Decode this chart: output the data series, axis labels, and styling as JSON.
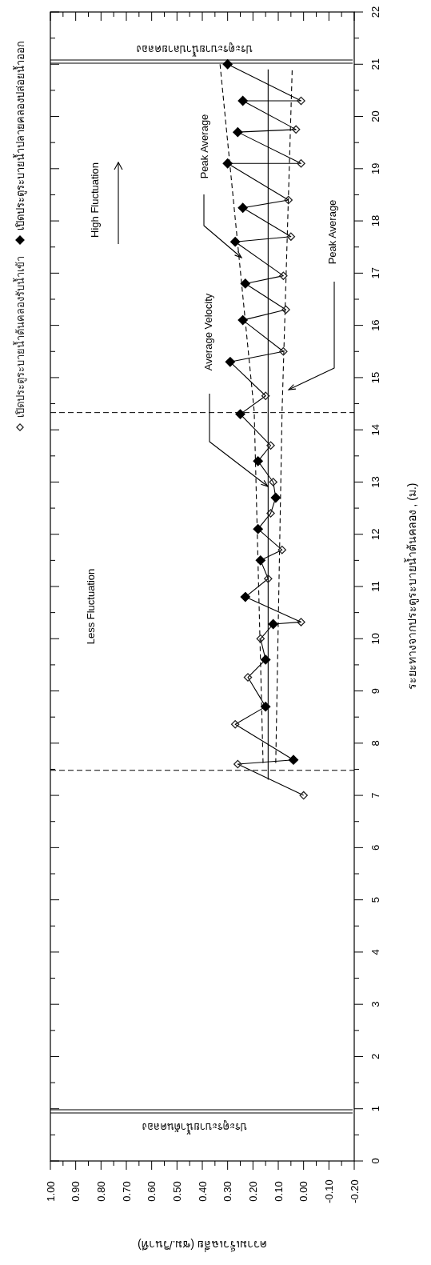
{
  "chart_data": {
    "type": "scatter",
    "ylabel": "ระยะทางจากประตูระบายน้ำต้นคลอง , (ม.)",
    "xlabel": "ความเร็วเฉลี่ย (ซม./วินาที)",
    "ylim": [
      0,
      22
    ],
    "xlim": [
      1.0,
      -0.2
    ],
    "yticks": [
      0,
      {
        "value": 0.5,
        "label": null
      },
      1,
      {
        "value": 1.5,
        "label": null
      },
      2,
      {
        "value": 2.5,
        "label": null
      },
      3,
      {
        "value": 3.5,
        "label": null
      },
      4,
      {
        "value": 4.5,
        "label": null
      },
      5,
      {
        "value": 5.5,
        "label": null
      },
      6,
      {
        "value": 6.5,
        "label": null
      },
      7,
      {
        "value": 7.5,
        "label": null
      },
      8,
      {
        "value": 8.5,
        "label": null
      },
      9,
      {
        "value": 9.5,
        "label": null
      },
      10,
      {
        "value": 10.5,
        "label": null
      },
      11,
      {
        "value": 11.5,
        "label": null
      },
      12,
      {
        "value": 12.5,
        "label": null
      },
      13,
      {
        "value": 13.5,
        "label": null
      },
      14,
      {
        "value": 14.5,
        "label": null
      },
      15,
      {
        "value": 15.5,
        "label": null
      },
      16,
      {
        "value": 16.5,
        "label": null
      },
      17,
      {
        "value": 17.5,
        "label": null
      },
      18,
      {
        "value": 18.5,
        "label": null
      },
      19,
      {
        "value": 19.5,
        "label": null
      },
      20,
      {
        "value": 20.5,
        "label": null
      },
      21,
      {
        "value": 21.5,
        "label": null
      },
      22
    ],
    "xticks": [
      {
        "value": 1.0,
        "label": "1.00"
      },
      {
        "value": 0.95,
        "label": null
      },
      {
        "value": 0.9,
        "label": "0.90"
      },
      {
        "value": 0.85,
        "label": null
      },
      {
        "value": 0.8,
        "label": "0.80"
      },
      {
        "value": 0.75,
        "label": null
      },
      {
        "value": 0.7,
        "label": "0.70"
      },
      {
        "value": 0.65,
        "label": null
      },
      {
        "value": 0.6,
        "label": "0.60"
      },
      {
        "value": 0.55,
        "label": null
      },
      {
        "value": 0.5,
        "label": "0.50"
      },
      {
        "value": 0.45,
        "label": null
      },
      {
        "value": 0.4,
        "label": "0.40"
      },
      {
        "value": 0.35,
        "label": null
      },
      {
        "value": 0.3,
        "label": "0.30"
      },
      {
        "value": 0.25,
        "label": null
      },
      {
        "value": 0.2,
        "label": "0.20"
      },
      {
        "value": 0.15,
        "label": null
      },
      {
        "value": 0.1,
        "label": "0.10"
      },
      {
        "value": 0.05,
        "label": null
      },
      {
        "value": 0,
        "label": "0.00"
      },
      {
        "value": -0.05,
        "label": null
      },
      {
        "value": -0.1,
        "label": "-0.10"
      },
      {
        "value": -0.15,
        "label": null
      },
      {
        "value": -0.2,
        "label": "-0.20"
      }
    ],
    "grid": false,
    "legend": "left",
    "series": [
      {
        "type": "line",
        "color": "#000000",
        "line_style": "solid",
        "values": [
          7.0,
          7.6,
          7.68,
          8.36,
          8.7,
          9.26,
          9.6,
          10.0,
          10.28,
          10.32,
          10.8,
          11.15,
          11.5,
          11.7,
          12.1,
          12.4,
          12.7,
          13.0,
          13.4,
          13.7,
          14.3,
          14.65,
          15.3,
          15.5,
          16.1,
          16.3,
          16.8,
          16.95,
          17.6,
          17.7,
          18.25,
          18.4,
          19.1,
          19.1,
          19.7,
          19.75,
          20.3,
          20.3,
          21.0
        ],
        "x": [
          0.0,
          0.26,
          0.04,
          0.27,
          0.15,
          0.22,
          0.15,
          0.17,
          0.12,
          0.01,
          0.23,
          0.14,
          0.17,
          0.085,
          0.18,
          0.13,
          0.11,
          0.12,
          0.18,
          0.13,
          0.25,
          0.15,
          0.29,
          0.08,
          0.24,
          0.07,
          0.23,
          0.08,
          0.27,
          0.05,
          0.24,
          0.06,
          0.3,
          0.01,
          0.26,
          0.03,
          0.24,
          0.01,
          0.3
        ]
      },
      {
        "type": "line",
        "color": "#000000",
        "marker": "none",
        "line_style": "solid",
        "values": [
          7.3,
          20.9
        ],
        "x": [
          0.14,
          0.14
        ]
      },
      {
        "type": "line",
        "color": "#000000",
        "marker": "none",
        "line_style": "dashed",
        "values": [
          7.62,
          14.35,
          21.0
        ],
        "x": [
          0.16,
          0.195,
          0.33
        ]
      },
      {
        "type": "line",
        "color": "#000000",
        "marker": "none",
        "line_style": "dashed",
        "values": [
          7.62,
          14.35,
          20.9
        ],
        "x": [
          0.11,
          0.085,
          0.045
        ]
      },
      {
        "name": "เปิดประตูระบายน้ำต้นคลองรับน้ำเข้า",
        "type": "scatter",
        "color": "#222222",
        "marker": "diamond-open",
        "values": [
          7.0,
          7.6,
          8.36,
          9.26,
          10.0,
          10.32,
          11.15,
          11.7,
          12.4,
          13.0,
          13.7,
          14.65,
          15.5,
          16.3,
          16.95,
          17.7,
          18.4,
          19.1,
          19.75,
          20.3
        ],
        "x": [
          0.0,
          0.26,
          0.27,
          0.22,
          0.17,
          0.01,
          0.14,
          0.085,
          0.13,
          0.12,
          0.13,
          0.15,
          0.08,
          0.07,
          0.08,
          0.05,
          0.06,
          0.01,
          0.03,
          0.01
        ]
      },
      {
        "name": "เปิดประตูระบายน้ำปลายคลองปล่อยน้ำออก",
        "color": "#000000",
        "marker": "diamond",
        "values": [
          7.68,
          8.7,
          9.6,
          10.28,
          10.8,
          11.5,
          12.1,
          12.7,
          13.4,
          14.3,
          15.3,
          16.1,
          16.8,
          17.6,
          18.25,
          19.1,
          19.7,
          20.3,
          21.0
        ],
        "x": [
          0.04,
          0.15,
          0.15,
          0.12,
          0.23,
          0.17,
          0.18,
          0.11,
          0.18,
          0.25,
          0.29,
          0.24,
          0.23,
          0.27,
          0.24,
          0.3,
          0.26,
          0.24,
          0.3
        ]
      }
    ],
    "ref_lines": [
      {
        "axis": "y",
        "value": 0.95,
        "label": "ประตูระบายน้ำต้นคลอง"
      },
      {
        "axis": "y",
        "value": 21.05,
        "label": "ประตูระบายน้ำปลายคลอง"
      },
      {
        "axis": "y",
        "value": 7.48,
        "line_style": "dashed"
      },
      {
        "axis": "y",
        "value": 14.33,
        "line_style": "dashed"
      }
    ],
    "annotations": [
      "Less Fluctuation",
      "High Fluctuation",
      "Average Velocity",
      "Peak Average",
      "Peak Average"
    ]
  }
}
